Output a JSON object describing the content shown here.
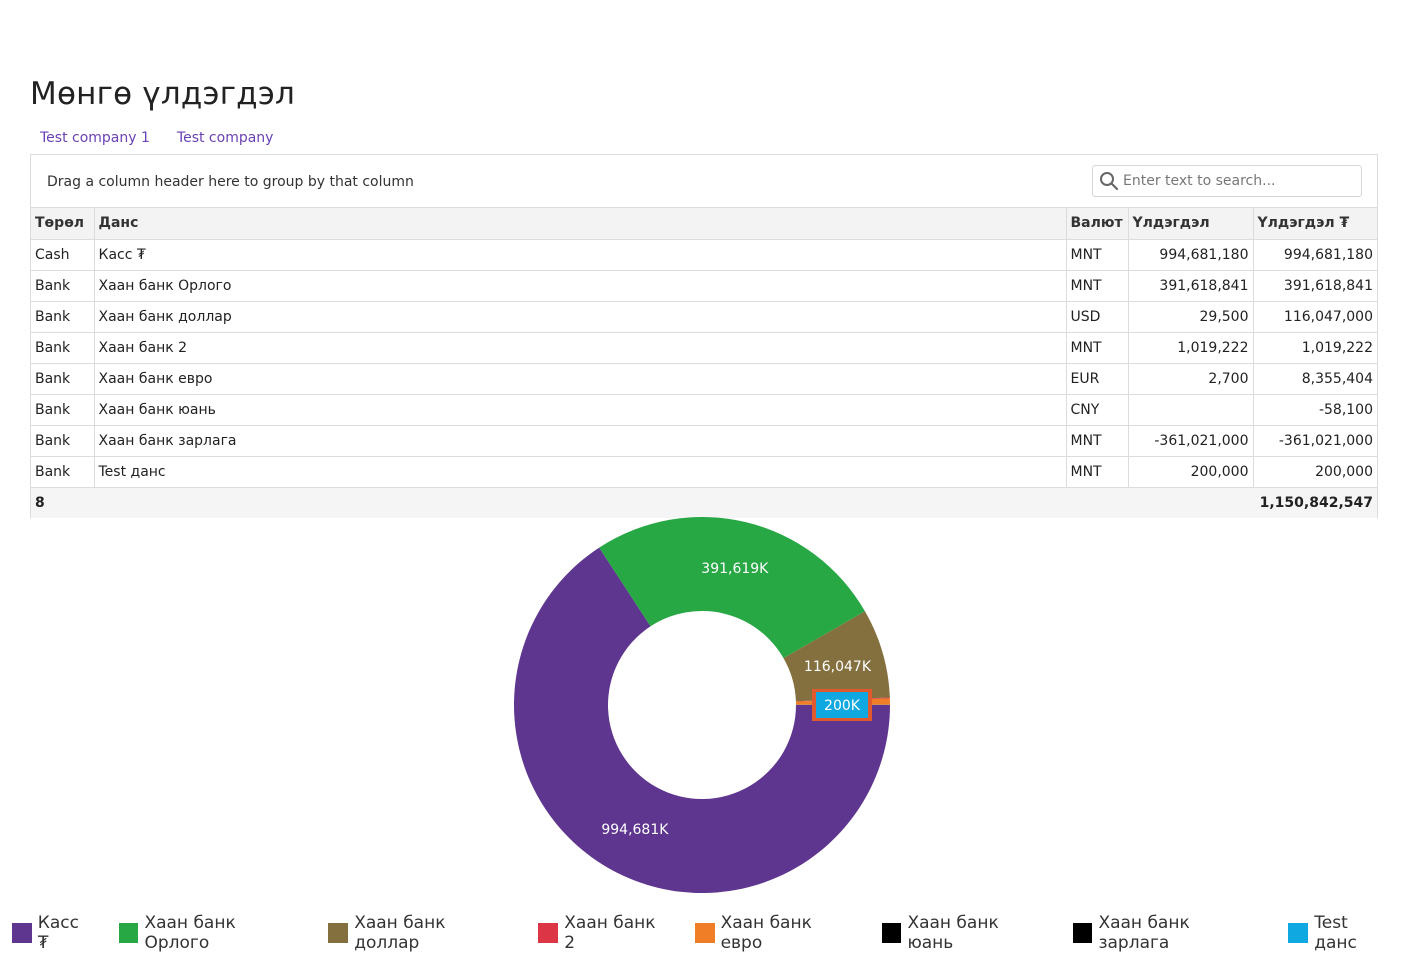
{
  "page": {
    "title": "Мөнгө үлдэгдэл"
  },
  "company_tabs": [
    "Test company 1",
    "Test company"
  ],
  "grid": {
    "group_hint": "Drag a column header here to group by that column",
    "search_placeholder": "Enter text to search...",
    "columns": [
      "Төрөл",
      "Данс",
      "Валют",
      "Үлдэгдэл",
      "Үлдэгдэл ₮"
    ],
    "rows": [
      [
        "Cash",
        "Касс ₮",
        "MNT",
        "994,681,180",
        "994,681,180"
      ],
      [
        "Bank",
        "Хаан банк Орлого",
        "MNT",
        "391,618,841",
        "391,618,841"
      ],
      [
        "Bank",
        "Хаан банк доллар",
        "USD",
        "29,500",
        "116,047,000"
      ],
      [
        "Bank",
        "Хаан банк 2",
        "MNT",
        "1,019,222",
        "1,019,222"
      ],
      [
        "Bank",
        "Хаан банк евро",
        "EUR",
        "2,700",
        "8,355,404"
      ],
      [
        "Bank",
        "Хаан банк юань",
        "CNY",
        "",
        "-58,100"
      ],
      [
        "Bank",
        "Хаан банк зарлага",
        "MNT",
        "-361,021,000",
        "-361,021,000"
      ],
      [
        "Bank",
        "Test данс",
        "MNT",
        "200,000",
        "200,000"
      ]
    ],
    "footer": {
      "count": "8",
      "total": "1,150,842,547"
    }
  },
  "chart_data": {
    "type": "pie",
    "categories": [
      "Касс ₮",
      "Хаан банк Орлого",
      "Хаан банк доллар",
      "Хаан банк 2",
      "Хаан банк евро",
      "Хаан банк юань",
      "Хаан банк зарлага",
      "Test данс"
    ],
    "values": [
      994681180,
      391618841,
      116047000,
      1019222,
      8355404,
      0,
      0,
      200000
    ],
    "colors": [
      "#5e358f",
      "#28a745",
      "#84703f",
      "#dc3545",
      "#f07e26",
      "#000000",
      "#000000",
      "#10a8e0"
    ],
    "labels": [
      "994,681K",
      "391,619K",
      "116,047K",
      "",
      "",
      "",
      "",
      "200K"
    ],
    "legend_position": "bottom"
  }
}
